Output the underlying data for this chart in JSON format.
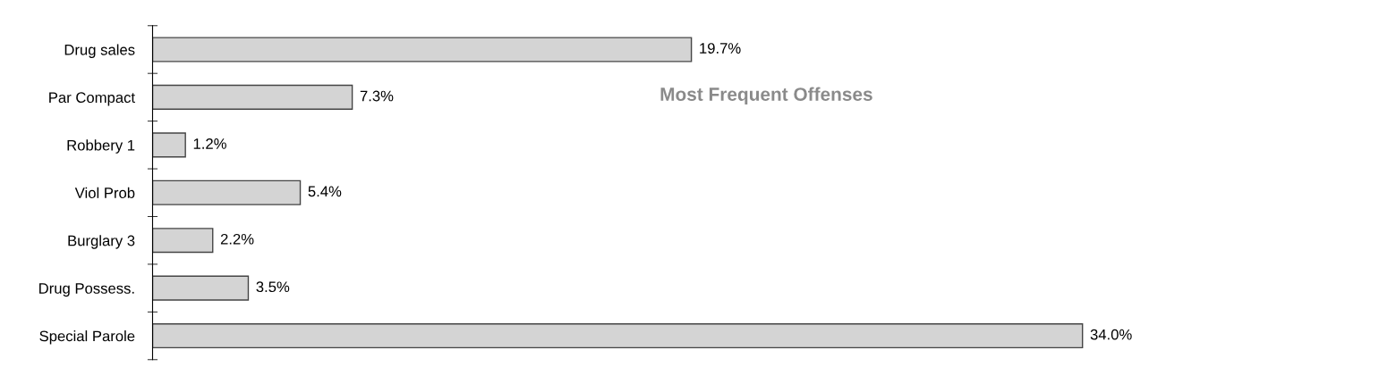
{
  "chart_data": {
    "type": "bar",
    "orientation": "horizontal",
    "title": "Most Frequent Offenses",
    "categories": [
      "Drug sales",
      "Par Compact",
      "Robbery 1",
      "Viol Prob",
      "Burglary 3",
      "Drug Possess.",
      "Special Parole"
    ],
    "series": [
      {
        "color": "#d4d4d4",
        "values": [
          19.7,
          7.3,
          1.2,
          5.4,
          2.2,
          3.5,
          34.0
        ],
        "value_labels": [
          "19.7%",
          "7.3%",
          "1.2%",
          "5.4%",
          "2.2%",
          "3.5%",
          "34.0%"
        ]
      }
    ],
    "grid": false,
    "legend": false
  }
}
